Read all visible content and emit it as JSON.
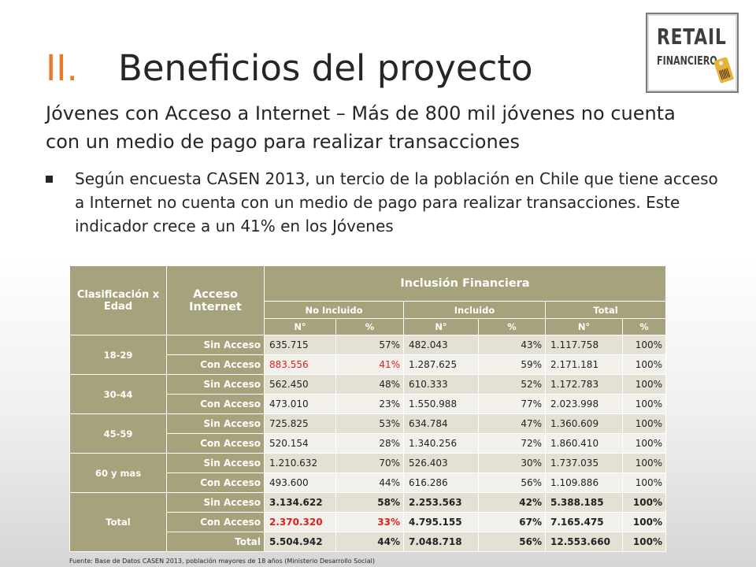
{
  "title": {
    "number": "II.",
    "text": "Beneficios del proyecto"
  },
  "logo": {
    "line1": "RETAIL",
    "line2": "FINANCIERO"
  },
  "subtitle": "Jóvenes con Acceso a Internet – Más de 800 mil jóvenes no cuenta con un medio de pago para realizar transacciones",
  "bullet": "Según encuesta CASEN 2013, un tercio de la población en Chile que tiene acceso a Internet no cuenta con un medio de pago para realizar transacciones. Este indicador crece a un 41% en los Jóvenes",
  "table": {
    "header": {
      "clasificacion": "Clasificación x Edad",
      "acceso": "Acceso Internet",
      "inclusion": "Inclusión Financiera",
      "groups": [
        "No Incluido",
        "Incluido",
        "Total"
      ],
      "cols": [
        "N°",
        "%",
        "N°",
        "%",
        "N°",
        "%"
      ]
    },
    "groups": [
      {
        "age": "18-29",
        "rows": [
          {
            "label": "Sin Acceso",
            "values": [
              "635.715",
              "57%",
              "482.043",
              "43%",
              "1.117.758",
              "100%"
            ],
            "bold": false,
            "red": []
          },
          {
            "label": "Con Acceso",
            "values": [
              "883.556",
              "41%",
              "1.287.625",
              "59%",
              "2.171.181",
              "100%"
            ],
            "bold": false,
            "red": [
              0,
              1
            ]
          }
        ]
      },
      {
        "age": "30-44",
        "rows": [
          {
            "label": "Sin Acceso",
            "values": [
              "562.450",
              "48%",
              "610.333",
              "52%",
              "1.172.783",
              "100%"
            ],
            "bold": false,
            "red": []
          },
          {
            "label": "Con Acceso",
            "values": [
              "473.010",
              "23%",
              "1.550.988",
              "77%",
              "2.023.998",
              "100%"
            ],
            "bold": false,
            "red": []
          }
        ]
      },
      {
        "age": "45-59",
        "rows": [
          {
            "label": "Sin Acceso",
            "values": [
              "725.825",
              "53%",
              "634.784",
              "47%",
              "1.360.609",
              "100%"
            ],
            "bold": false,
            "red": []
          },
          {
            "label": "Con Acceso",
            "values": [
              "520.154",
              "28%",
              "1.340.256",
              "72%",
              "1.860.410",
              "100%"
            ],
            "bold": false,
            "red": []
          }
        ]
      },
      {
        "age": "60 y mas",
        "rows": [
          {
            "label": "Sin Acceso",
            "values": [
              "1.210.632",
              "70%",
              "526.403",
              "30%",
              "1.737.035",
              "100%"
            ],
            "bold": false,
            "red": []
          },
          {
            "label": "Con Acceso",
            "values": [
              "493.600",
              "44%",
              "616.286",
              "56%",
              "1.109.886",
              "100%"
            ],
            "bold": false,
            "red": []
          }
        ]
      },
      {
        "age": "Total",
        "rows": [
          {
            "label": "Sin Acceso",
            "values": [
              "3.134.622",
              "58%",
              "2.253.563",
              "42%",
              "5.388.185",
              "100%"
            ],
            "bold": true,
            "red": []
          },
          {
            "label": "Con Acceso",
            "values": [
              "2.370.320",
              "33%",
              "4.795.155",
              "67%",
              "7.165.475",
              "100%"
            ],
            "bold": true,
            "red": [
              0,
              1
            ]
          },
          {
            "label": "Total",
            "values": [
              "5.504.942",
              "44%",
              "7.048.718",
              "56%",
              "12.553.660",
              "100%"
            ],
            "bold": true,
            "red": []
          }
        ]
      }
    ]
  },
  "source": "Fuente: Base de Datos CASEN 2013, población mayores de 18 años (Ministerio Desarrollo Social)"
}
